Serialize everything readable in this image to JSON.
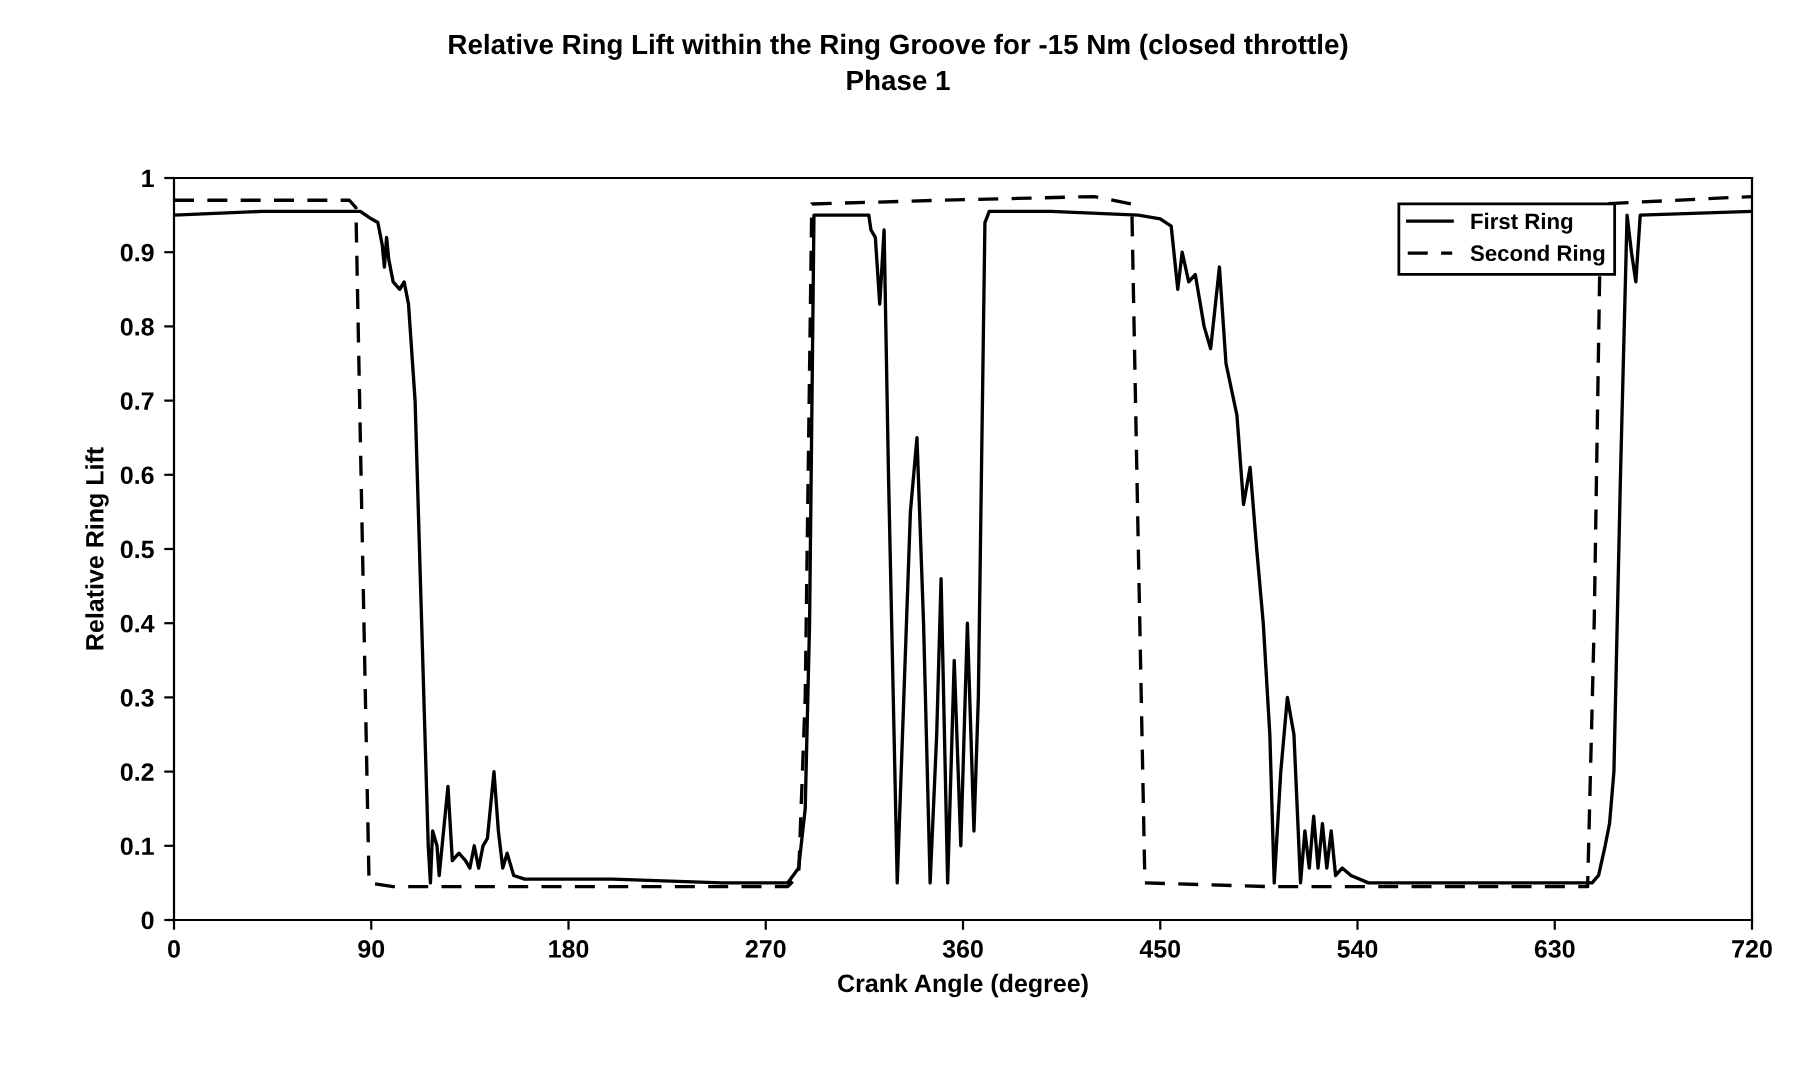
{
  "chart_data": {
    "type": "line",
    "title": "Relative Ring Lift within the Ring Groove for -15 Nm (closed throttle)",
    "subtitle": "Phase 1",
    "xlabel": "Crank Angle (degree)",
    "ylabel": "Relative Ring Lift",
    "xlim": [
      0,
      720
    ],
    "xticks": [
      0,
      90,
      180,
      270,
      360,
      450,
      540,
      630,
      720
    ],
    "ylim": [
      0,
      1
    ],
    "yticks": [
      0,
      0.1,
      0.2,
      0.3,
      0.4,
      0.5,
      0.6,
      0.7,
      0.8,
      0.9,
      1
    ],
    "grid": false,
    "legend": "top right",
    "marker": "none",
    "series": [
      {
        "name": "First Ring",
        "color": "#000000",
        "line_style": "solid",
        "x": [
          0,
          40,
          85,
          90,
          93,
          95,
          96,
          97,
          98,
          100,
          103,
          105,
          107,
          110,
          113,
          116,
          117,
          118,
          120,
          121,
          123,
          125,
          127,
          130,
          133,
          135,
          137,
          139,
          141,
          143,
          146,
          148,
          150,
          152,
          155,
          160,
          200,
          250,
          280,
          285,
          288,
          290,
          292,
          300,
          317,
          318,
          320,
          322,
          324,
          326,
          330,
          333,
          336,
          339,
          342,
          345,
          348,
          350,
          353,
          356,
          359,
          362,
          365,
          367,
          370,
          372,
          400,
          440,
          450,
          455,
          458,
          460,
          463,
          466,
          470,
          473,
          477,
          480,
          485,
          488,
          491,
          494,
          497,
          500,
          502,
          505,
          508,
          511,
          514,
          516,
          518,
          520,
          522,
          524,
          526,
          528,
          530,
          533,
          537,
          545,
          600,
          647,
          650,
          653,
          655,
          657,
          660,
          663,
          665,
          667,
          669,
          720
        ],
        "values": [
          0.95,
          0.955,
          0.955,
          0.945,
          0.94,
          0.91,
          0.88,
          0.92,
          0.89,
          0.86,
          0.85,
          0.86,
          0.83,
          0.7,
          0.4,
          0.1,
          0.05,
          0.12,
          0.1,
          0.06,
          0.12,
          0.18,
          0.08,
          0.09,
          0.08,
          0.07,
          0.1,
          0.07,
          0.1,
          0.11,
          0.2,
          0.12,
          0.07,
          0.09,
          0.06,
          0.055,
          0.055,
          0.05,
          0.05,
          0.07,
          0.15,
          0.4,
          0.95,
          0.95,
          0.95,
          0.93,
          0.92,
          0.83,
          0.93,
          0.6,
          0.05,
          0.3,
          0.55,
          0.65,
          0.4,
          0.05,
          0.25,
          0.46,
          0.05,
          0.35,
          0.1,
          0.4,
          0.12,
          0.3,
          0.94,
          0.955,
          0.955,
          0.95,
          0.945,
          0.935,
          0.85,
          0.9,
          0.86,
          0.87,
          0.8,
          0.77,
          0.88,
          0.75,
          0.68,
          0.56,
          0.61,
          0.5,
          0.4,
          0.25,
          0.05,
          0.2,
          0.3,
          0.25,
          0.05,
          0.12,
          0.07,
          0.14,
          0.07,
          0.13,
          0.07,
          0.12,
          0.06,
          0.07,
          0.06,
          0.05,
          0.05,
          0.05,
          0.06,
          0.1,
          0.13,
          0.2,
          0.6,
          0.95,
          0.9,
          0.86,
          0.95,
          0.955
        ]
      },
      {
        "name": "Second Ring",
        "color": "#000000",
        "line_style": "dashed",
        "x": [
          0,
          80,
          83,
          86,
          89,
          100,
          280,
          285,
          288,
          291,
          350,
          420,
          437,
          440,
          443,
          500,
          645,
          648,
          651,
          720
        ],
        "values": [
          0.97,
          0.97,
          0.96,
          0.5,
          0.05,
          0.045,
          0.045,
          0.06,
          0.3,
          0.965,
          0.97,
          0.975,
          0.965,
          0.5,
          0.05,
          0.045,
          0.045,
          0.4,
          0.965,
          0.975
        ]
      }
    ]
  }
}
